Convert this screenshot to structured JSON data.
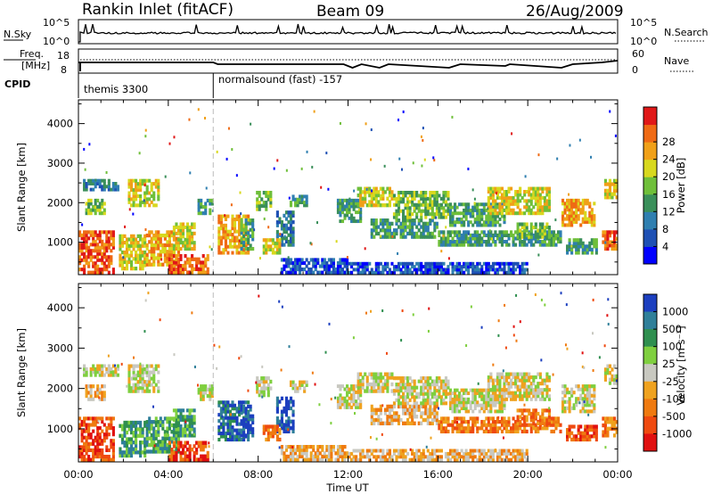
{
  "header": {
    "station": "Rankin Inlet (fitACF)",
    "beam": "Beam 09",
    "date": "26/Aug/2009"
  },
  "noise_panel": {
    "left_label": "N.Sky",
    "right_label": "N.Search",
    "left_ticks": [
      "10^5",
      "10^0"
    ],
    "right_ticks": [
      "10^5",
      "10^0"
    ]
  },
  "freq_panel": {
    "left_label_1": "Freq.",
    "left_label_2": "[MHz]",
    "right_label": "Nave",
    "left_ticks": [
      "18",
      "8"
    ],
    "right_ticks": [
      "60",
      "0"
    ]
  },
  "cpid_panel": {
    "label": "CPID",
    "programs": [
      {
        "name": "themis 3300",
        "start_hour": 0
      },
      {
        "name": "normalsound (fast) -157",
        "start_hour": 6
      }
    ]
  },
  "chart_data": [
    {
      "type": "heatmap",
      "name": "power",
      "ylabel": "Slant Range [km]",
      "ylim": [
        180,
        4600
      ],
      "xlim_hours": [
        0,
        24
      ],
      "x_ticks": [
        "00:00",
        "04:00",
        "08:00",
        "12:00",
        "16:00",
        "20:00",
        "00:00"
      ],
      "y_ticks": [
        1000,
        2000,
        3000,
        4000
      ],
      "colorbar": {
        "label": "Power [dB]",
        "ticks": [
          "4",
          "8",
          "12",
          "16",
          "20",
          "24",
          "28"
        ],
        "colors": [
          "#0000ff",
          "#1e50b4",
          "#2f7fb0",
          "#3a8f5a",
          "#6fbf3a",
          "#d8d81e",
          "#f0a018",
          "#ef6a14",
          "#e01818"
        ]
      }
    },
    {
      "type": "heatmap",
      "name": "velocity",
      "ylabel": "Slant Range [km]",
      "ylim": [
        180,
        4600
      ],
      "xlim_hours": [
        0,
        24
      ],
      "x_ticks": [
        "00:00",
        "04:00",
        "08:00",
        "12:00",
        "16:00",
        "20:00",
        "00:00"
      ],
      "xlabel": "Time UT",
      "y_ticks": [
        1000,
        2000,
        3000,
        4000
      ],
      "colorbar": {
        "label": "Velocity [m s⁻¹]",
        "ticks": [
          "1000",
          "500",
          "100",
          "25",
          "-25",
          "-100",
          "-500",
          "-1000"
        ],
        "colors": [
          "#1c3fbf",
          "#2f7f99",
          "#2f8f4f",
          "#7fcf3f",
          "#c8c8c0",
          "#efa21f",
          "#ef7a10",
          "#ef4a10",
          "#e01010"
        ]
      }
    }
  ]
}
